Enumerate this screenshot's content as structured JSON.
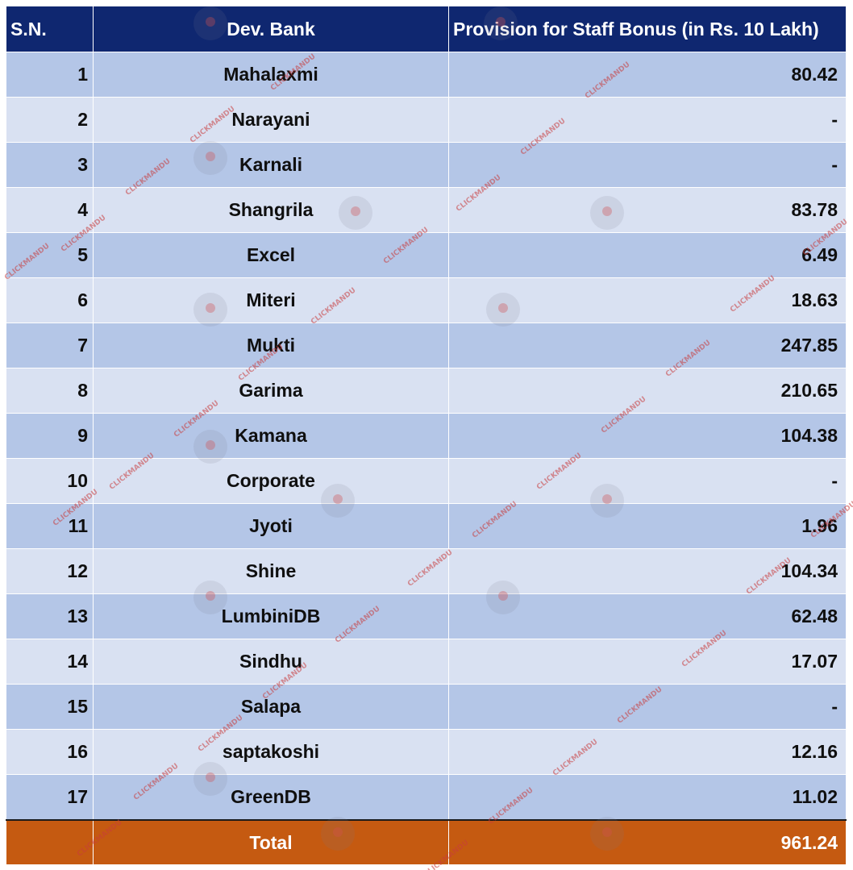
{
  "table": {
    "headers": {
      "sn": "S.N.",
      "bank": "Dev. Bank",
      "provision": "Provision for Staff Bonus (in Rs. 10 Lakh)"
    },
    "rows": [
      {
        "sn": "1",
        "bank": "Mahalaxmi",
        "provision": "80.42"
      },
      {
        "sn": "2",
        "bank": "Narayani",
        "provision": "-"
      },
      {
        "sn": "3",
        "bank": "Karnali",
        "provision": "-"
      },
      {
        "sn": "4",
        "bank": "Shangrila",
        "provision": "83.78"
      },
      {
        "sn": "5",
        "bank": "Excel",
        "provision": "6.49"
      },
      {
        "sn": "6",
        "bank": "Miteri",
        "provision": "18.63"
      },
      {
        "sn": "7",
        "bank": "Mukti",
        "provision": "247.85"
      },
      {
        "sn": "8",
        "bank": "Garima",
        "provision": "210.65"
      },
      {
        "sn": "9",
        "bank": "Kamana",
        "provision": "104.38"
      },
      {
        "sn": "10",
        "bank": "Corporate",
        "provision": "-"
      },
      {
        "sn": "11",
        "bank": "Jyoti",
        "provision": "1.96"
      },
      {
        "sn": "12",
        "bank": "Shine",
        "provision": "104.34"
      },
      {
        "sn": "13",
        "bank": "LumbiniDB",
        "provision": "62.48"
      },
      {
        "sn": "14",
        "bank": "Sindhu",
        "provision": "17.07"
      },
      {
        "sn": "15",
        "bank": "Salapa",
        "provision": "-"
      },
      {
        "sn": "16",
        "bank": "saptakoshi",
        "provision": "12.16"
      },
      {
        "sn": "17",
        "bank": "GreenDB",
        "provision": "11.02"
      }
    ],
    "total": {
      "sn": "",
      "label": "Total",
      "value": "961.24"
    }
  },
  "watermark": {
    "text": "CLICKMANDU"
  },
  "colors": {
    "header_bg": "#0f2770",
    "row_dark": "#b4c6e7",
    "row_light": "#d9e1f2",
    "total_bg": "#c55a11"
  }
}
